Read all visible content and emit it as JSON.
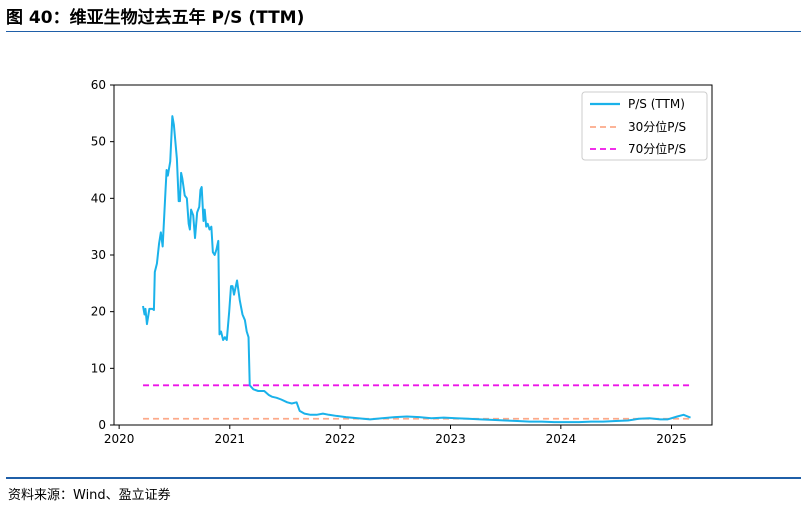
{
  "figure": {
    "title": "图 40：维亚生物过去五年 P/S (TTM)",
    "source": "资料来源：Wind、盈立证券"
  },
  "chart_data": {
    "type": "line",
    "xlim": [
      "2019-12-15",
      "2025-05-15"
    ],
    "ylim": [
      0,
      60
    ],
    "x_ticks": [
      "2020",
      "2021",
      "2022",
      "2023",
      "2024",
      "2025"
    ],
    "y_ticks": [
      "0",
      "10",
      "20",
      "30",
      "40",
      "50",
      "60"
    ],
    "grid": false,
    "legend_position": "top-right",
    "legend": [
      "P/S (TTM)",
      "30分位P/S",
      "70分位P/S"
    ],
    "colors": {
      "ps": "#1ab2ea",
      "p30": "#fca98a",
      "p70": "#ee12e8"
    },
    "series": [
      {
        "name": "P/S (TTM)",
        "points": [
          [
            "2020-03-20",
            21.0
          ],
          [
            "2020-03-25",
            19.5
          ],
          [
            "2020-03-28",
            20.5
          ],
          [
            "2020-04-02",
            17.8
          ],
          [
            "2020-04-10",
            20.5
          ],
          [
            "2020-04-20",
            20.5
          ],
          [
            "2020-04-25",
            20.3
          ],
          [
            "2020-04-28",
            27.0
          ],
          [
            "2020-05-05",
            28.5
          ],
          [
            "2020-05-12",
            32.0
          ],
          [
            "2020-05-18",
            34.0
          ],
          [
            "2020-05-24",
            31.5
          ],
          [
            "2020-06-02",
            41.0
          ],
          [
            "2020-06-06",
            45.0
          ],
          [
            "2020-06-10",
            44.0
          ],
          [
            "2020-06-18",
            46.5
          ],
          [
            "2020-06-25",
            54.5
          ],
          [
            "2020-06-30",
            53.0
          ],
          [
            "2020-07-10",
            47.0
          ],
          [
            "2020-07-16",
            39.5
          ],
          [
            "2020-07-20",
            39.5
          ],
          [
            "2020-07-24",
            44.5
          ],
          [
            "2020-07-28",
            43.5
          ],
          [
            "2020-08-05",
            40.5
          ],
          [
            "2020-08-12",
            40.0
          ],
          [
            "2020-08-18",
            35.5
          ],
          [
            "2020-08-22",
            34.5
          ],
          [
            "2020-08-26",
            38.0
          ],
          [
            "2020-09-02",
            37.0
          ],
          [
            "2020-09-08",
            33.0
          ],
          [
            "2020-09-15",
            37.5
          ],
          [
            "2020-09-22",
            38.5
          ],
          [
            "2020-09-26",
            41.5
          ],
          [
            "2020-09-30",
            42.0
          ],
          [
            "2020-10-06",
            36.0
          ],
          [
            "2020-10-10",
            38.0
          ],
          [
            "2020-10-15",
            35.0
          ],
          [
            "2020-10-20",
            35.5
          ],
          [
            "2020-10-26",
            34.5
          ],
          [
            "2020-11-01",
            35.0
          ],
          [
            "2020-11-06",
            30.5
          ],
          [
            "2020-11-12",
            30.0
          ],
          [
            "2020-11-18",
            31.0
          ],
          [
            "2020-11-24",
            32.5
          ],
          [
            "2020-11-28",
            16.0
          ],
          [
            "2020-12-03",
            16.5
          ],
          [
            "2020-12-10",
            15.0
          ],
          [
            "2020-12-16",
            15.5
          ],
          [
            "2020-12-22",
            15.0
          ],
          [
            "2020-12-30",
            20.0
          ],
          [
            "2021-01-05",
            24.5
          ],
          [
            "2021-01-10",
            24.5
          ],
          [
            "2021-01-15",
            23.0
          ],
          [
            "2021-01-25",
            25.5
          ],
          [
            "2021-02-03",
            22.0
          ],
          [
            "2021-02-12",
            19.5
          ],
          [
            "2021-02-20",
            18.5
          ],
          [
            "2021-02-26",
            16.5
          ],
          [
            "2021-03-04",
            15.5
          ],
          [
            "2021-03-08",
            7.0
          ],
          [
            "2021-03-20",
            6.3
          ],
          [
            "2021-04-05",
            6.0
          ],
          [
            "2021-04-25",
            6.0
          ],
          [
            "2021-05-10",
            5.3
          ],
          [
            "2021-05-20",
            5.0
          ],
          [
            "2021-06-05",
            4.8
          ],
          [
            "2021-06-20",
            4.5
          ],
          [
            "2021-07-10",
            4.0
          ],
          [
            "2021-07-25",
            3.8
          ],
          [
            "2021-08-10",
            4.0
          ],
          [
            "2021-08-20",
            2.5
          ],
          [
            "2021-09-05",
            2.0
          ],
          [
            "2021-09-25",
            1.8
          ],
          [
            "2021-10-15",
            1.8
          ],
          [
            "2021-11-05",
            2.0
          ],
          [
            "2021-11-25",
            1.8
          ],
          [
            "2021-12-20",
            1.6
          ],
          [
            "2022-01-20",
            1.4
          ],
          [
            "2022-03-01",
            1.2
          ],
          [
            "2022-04-10",
            1.0
          ],
          [
            "2022-05-20",
            1.2
          ],
          [
            "2022-07-01",
            1.4
          ],
          [
            "2022-08-10",
            1.5
          ],
          [
            "2022-09-20",
            1.4
          ],
          [
            "2022-10-30",
            1.2
          ],
          [
            "2022-12-10",
            1.3
          ],
          [
            "2023-01-20",
            1.2
          ],
          [
            "2023-03-01",
            1.1
          ],
          [
            "2023-04-10",
            1.0
          ],
          [
            "2023-05-20",
            0.9
          ],
          [
            "2023-07-01",
            0.8
          ],
          [
            "2023-08-10",
            0.7
          ],
          [
            "2023-09-20",
            0.6
          ],
          [
            "2023-10-30",
            0.6
          ],
          [
            "2023-12-10",
            0.5
          ],
          [
            "2024-01-20",
            0.5
          ],
          [
            "2024-03-01",
            0.5
          ],
          [
            "2024-04-10",
            0.6
          ],
          [
            "2024-05-20",
            0.6
          ],
          [
            "2024-07-01",
            0.7
          ],
          [
            "2024-08-10",
            0.8
          ],
          [
            "2024-09-15",
            1.1
          ],
          [
            "2024-10-20",
            1.2
          ],
          [
            "2024-11-25",
            1.0
          ],
          [
            "2024-12-20",
            1.0
          ],
          [
            "2025-01-20",
            1.5
          ],
          [
            "2025-02-10",
            1.8
          ],
          [
            "2025-03-05",
            1.3
          ]
        ]
      },
      {
        "name": "30分位P/S",
        "start": "2020-03-20",
        "end": "2025-03-05",
        "value": 1.1
      },
      {
        "name": "70分位P/S",
        "start": "2020-03-20",
        "end": "2025-03-05",
        "value": 7.0
      }
    ]
  }
}
